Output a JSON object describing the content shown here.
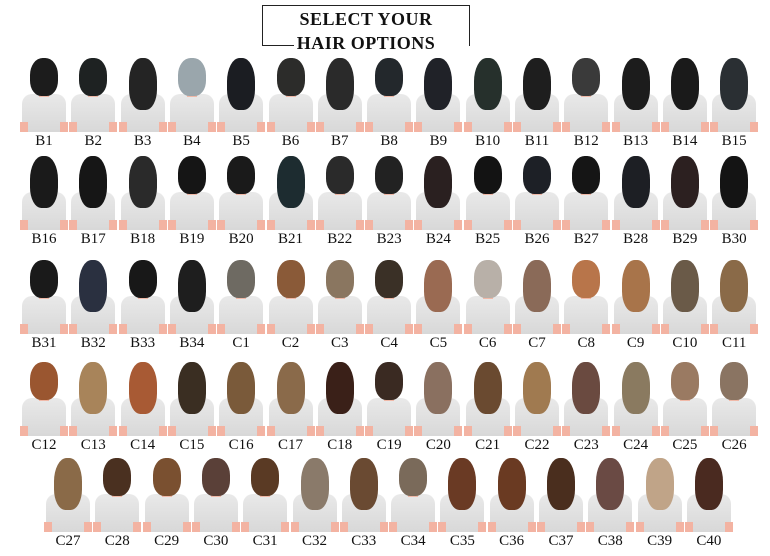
{
  "title": {
    "line1": "SELECT YOUR",
    "line2": "HAIR OPTIONS"
  },
  "rows": [
    {
      "items": [
        {
          "label": "B1",
          "hair": "#1c1c1c"
        },
        {
          "label": "B2",
          "hair": "#1e2222"
        },
        {
          "label": "B3",
          "hair": "#242424",
          "long": true
        },
        {
          "label": "B4",
          "hair": "#9aa6ac"
        },
        {
          "label": "B5",
          "hair": "#1b1d22",
          "long": true
        },
        {
          "label": "B6",
          "hair": "#2c2c2a"
        },
        {
          "label": "B7",
          "hair": "#2a2a2a",
          "long": true
        },
        {
          "label": "B8",
          "hair": "#23282c"
        },
        {
          "label": "B9",
          "hair": "#202228",
          "long": true
        },
        {
          "label": "B10",
          "hair": "#26302c",
          "long": true
        },
        {
          "label": "B11",
          "hair": "#1e1e1e",
          "long": true
        },
        {
          "label": "B12",
          "hair": "#3a3a3a"
        },
        {
          "label": "B13",
          "hair": "#1c1c1c",
          "long": true
        },
        {
          "label": "B14",
          "hair": "#1a1a1a",
          "long": true
        },
        {
          "label": "B15",
          "hair": "#2a2f33",
          "long": true
        }
      ]
    },
    {
      "items": [
        {
          "label": "B16",
          "hair": "#1a1a1a",
          "long": true
        },
        {
          "label": "B17",
          "hair": "#161616",
          "long": true
        },
        {
          "label": "B18",
          "hair": "#2a2a2a",
          "long": true
        },
        {
          "label": "B19",
          "hair": "#151515"
        },
        {
          "label": "B20",
          "hair": "#1a1a1a"
        },
        {
          "label": "B21",
          "hair": "#1d2c30",
          "long": true
        },
        {
          "label": "B22",
          "hair": "#2a2a2a"
        },
        {
          "label": "B23",
          "hair": "#222222"
        },
        {
          "label": "B24",
          "hair": "#2a2020",
          "long": true
        },
        {
          "label": "B25",
          "hair": "#131313"
        },
        {
          "label": "B26",
          "hair": "#1d2026"
        },
        {
          "label": "B27",
          "hair": "#151515"
        },
        {
          "label": "B28",
          "hair": "#1d1f24",
          "long": true
        },
        {
          "label": "B29",
          "hair": "#2c2020",
          "long": true
        },
        {
          "label": "B30",
          "hair": "#141414",
          "long": true
        }
      ]
    },
    {
      "items": [
        {
          "label": "B31",
          "hair": "#1a1a1a"
        },
        {
          "label": "B32",
          "hair": "#2a3040",
          "long": true
        },
        {
          "label": "B33",
          "hair": "#181818"
        },
        {
          "label": "B34",
          "hair": "#1e1e1e",
          "long": true
        },
        {
          "label": "C1",
          "hair": "#6e6a62"
        },
        {
          "label": "C2",
          "hair": "#8a5a38"
        },
        {
          "label": "C3",
          "hair": "#8a7660"
        },
        {
          "label": "C4",
          "hair": "#3a3026"
        },
        {
          "label": "C5",
          "hair": "#9a6a52",
          "long": true
        },
        {
          "label": "C6",
          "hair": "#b8b0a8"
        },
        {
          "label": "C7",
          "hair": "#8a6a58",
          "long": true
        },
        {
          "label": "C8",
          "hair": "#b8754a"
        },
        {
          "label": "C9",
          "hair": "#a8744a",
          "long": true
        },
        {
          "label": "C10",
          "hair": "#6a5a48",
          "long": true
        },
        {
          "label": "C11",
          "hair": "#8a6a48",
          "long": true
        }
      ]
    },
    {
      "items": [
        {
          "label": "C12",
          "hair": "#9a5630"
        },
        {
          "label": "C13",
          "hair": "#a8845a",
          "long": true
        },
        {
          "label": "C14",
          "hair": "#a85a34",
          "long": true
        },
        {
          "label": "C15",
          "hair": "#3a2e22",
          "long": true
        },
        {
          "label": "C16",
          "hair": "#7a5a3a",
          "long": true
        },
        {
          "label": "C17",
          "hair": "#8a6a4a",
          "long": true
        },
        {
          "label": "C18",
          "hair": "#3a2018",
          "long": true
        },
        {
          "label": "C19",
          "hair": "#3a2a22"
        },
        {
          "label": "C20",
          "hair": "#8a7060",
          "long": true
        },
        {
          "label": "C21",
          "hair": "#6a4a30",
          "long": true
        },
        {
          "label": "C22",
          "hair": "#a07a50",
          "long": true
        },
        {
          "label": "C23",
          "hair": "#6a4a40",
          "long": true
        },
        {
          "label": "C24",
          "hair": "#8a7a60",
          "long": true
        },
        {
          "label": "C25",
          "hair": "#9a7a62"
        },
        {
          "label": "C26",
          "hair": "#8a7462"
        }
      ]
    },
    {
      "items": [
        {
          "label": "C27",
          "hair": "#8a6a48",
          "long": true
        },
        {
          "label": "C28",
          "hair": "#4a3020"
        },
        {
          "label": "C29",
          "hair": "#7a5030"
        },
        {
          "label": "C30",
          "hair": "#5a4038"
        },
        {
          "label": "C31",
          "hair": "#5a3a24"
        },
        {
          "label": "C32",
          "hair": "#8a7a6a",
          "long": true
        },
        {
          "label": "C33",
          "hair": "#6a4a32",
          "long": true
        },
        {
          "label": "C34",
          "hair": "#7a6a5a"
        },
        {
          "label": "C35",
          "hair": "#6a3a24",
          "long": true
        },
        {
          "label": "C36",
          "hair": "#6a3a22",
          "long": true
        },
        {
          "label": "C37",
          "hair": "#4a2e1e",
          "long": true
        },
        {
          "label": "C38",
          "hair": "#6a4a44",
          "long": true
        },
        {
          "label": "C39",
          "hair": "#c0a488",
          "long": true
        },
        {
          "label": "C40",
          "hair": "#4a2a20",
          "long": true
        }
      ]
    }
  ]
}
